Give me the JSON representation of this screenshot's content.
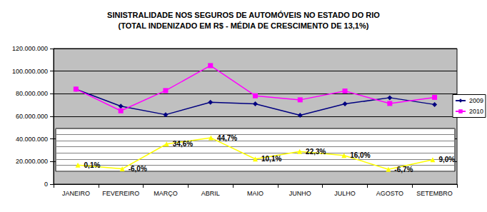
{
  "chart_data": {
    "type": "line",
    "title": "SINISTRALIDADE NOS SEGUROS DE AUTOMÓVEIS NO ESTADO DO RIO",
    "subtitle": "(TOTAL INDENIZADO EM R$ - MÉDIA DE CRESCIMENTO DE 13,1%)",
    "categories": [
      "JANEIRO",
      "FEVEREIRO",
      "MARÇO",
      "ABRIL",
      "MAIO",
      "JUNHO",
      "JULHO",
      "AGOSTO",
      "SETEMBRO"
    ],
    "series": [
      {
        "name": "2009",
        "color": "#000080",
        "marker": "diamond",
        "values": [
          84000000,
          69000000,
          61500000,
          72500000,
          71000000,
          61000000,
          71000000,
          76500000,
          70500000
        ]
      },
      {
        "name": "2010",
        "color": "#ff00ff",
        "marker": "square",
        "values": [
          84100000,
          64900000,
          82800000,
          104900000,
          78200000,
          74600000,
          82400000,
          71400000,
          76800000
        ]
      },
      {
        "color": "#ffff00",
        "marker": "triangle",
        "axis": "y2",
        "data_labels": true,
        "values": [
          0.1,
          -6.0,
          34.6,
          44.7,
          10.1,
          22.3,
          16.0,
          -6.7,
          9.0
        ],
        "value_labels": [
          "0,1%",
          "-6,0%",
          "34,6%",
          "44,7%",
          "10,1%",
          "22,3%",
          "16,0%",
          "-6,7%",
          "9,0%"
        ]
      }
    ],
    "ylim": [
      0,
      120000000
    ],
    "yticks": [
      0,
      {
        "value": 20000000,
        "label": "20.000.000"
      },
      {
        "value": 40000000,
        "label": "40.000.000"
      },
      {
        "value": 60000000,
        "label": "60.000.000"
      },
      {
        "value": 80000000,
        "label": "80.000.000"
      },
      {
        "value": 100000000,
        "label": "100.000.000"
      },
      {
        "value": 120000000,
        "label": "120.000.000"
      }
    ],
    "y2lim": [
      -10,
      60
    ],
    "grid": true,
    "legend": "right"
  }
}
